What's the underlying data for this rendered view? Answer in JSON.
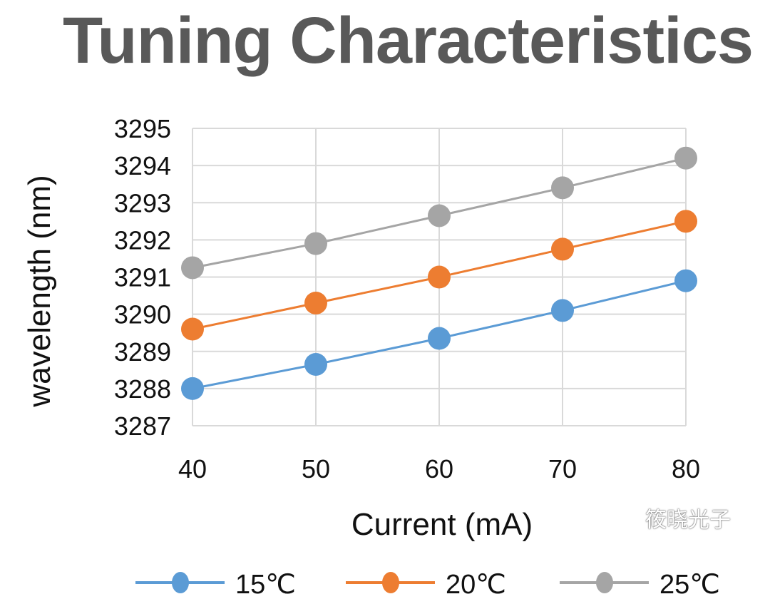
{
  "chart_data": {
    "type": "line",
    "title": "Tuning Characteristics",
    "xlabel": "Current (mA)",
    "ylabel": "wavelength (nm)",
    "x": [
      40,
      50,
      60,
      70,
      80
    ],
    "xlim": [
      40,
      80
    ],
    "ylim": [
      3287,
      3295
    ],
    "yticks": [
      3287,
      3288,
      3289,
      3290,
      3291,
      3292,
      3293,
      3294,
      3295
    ],
    "grid": true,
    "legend": "bottom",
    "series": [
      {
        "name": "15℃",
        "color": "#5b9bd5",
        "values": [
          3288.0,
          3288.65,
          3289.35,
          3290.1,
          3290.9
        ]
      },
      {
        "name": "20℃",
        "color": "#ed7d31",
        "values": [
          3289.6,
          3290.3,
          3291.0,
          3291.75,
          3292.5
        ]
      },
      {
        "name": "25℃",
        "color": "#a5a5a5",
        "values": [
          3291.25,
          3291.9,
          3292.65,
          3293.4,
          3294.2
        ]
      }
    ]
  },
  "watermark": "筱晓光子"
}
